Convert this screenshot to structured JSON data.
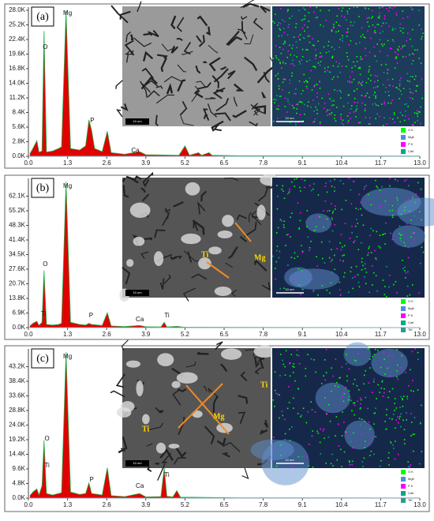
{
  "chart_data": [
    {
      "type": "area",
      "panel_label": "(a)",
      "color": "#e00000",
      "line_color": "#22b14c",
      "x": [
        0.05,
        0.15,
        0.28,
        0.35,
        0.45,
        0.52,
        0.6,
        0.8,
        1.0,
        1.1,
        1.25,
        1.4,
        1.7,
        1.9,
        2.01,
        2.1,
        2.2,
        2.45,
        2.62,
        2.75,
        3.2,
        3.69,
        3.9,
        5.0,
        5.2,
        5.35,
        5.65,
        5.75,
        6.0,
        6.1,
        7.0,
        13.0
      ],
      "values": [
        500,
        1500,
        3000,
        800,
        1000,
        24000,
        800,
        1000,
        1500,
        1800,
        28000,
        1500,
        1200,
        2000,
        7000,
        5000,
        1500,
        900,
        4800,
        700,
        400,
        900,
        300,
        200,
        2000,
        200,
        700,
        200,
        700,
        200,
        100,
        50
      ],
      "xlim": [
        0,
        13
      ],
      "ylim": [
        0,
        28000
      ],
      "xticks": [
        {
          "value": 0,
          "label": "0.0"
        },
        1.3,
        2.6,
        3.9,
        5.2,
        6.5,
        7.8,
        9.1,
        10.4,
        11.7,
        {
          "value": 13,
          "label": "13.0"
        }
      ],
      "yticks": [
        {
          "value": 0,
          "label": "0.0K"
        },
        {
          "value": 2800,
          "label": "2.8K"
        },
        {
          "value": 5600,
          "label": "5.6K"
        },
        {
          "value": 8400,
          "label": "8.4K"
        },
        {
          "value": 11200,
          "label": "11.2K"
        },
        {
          "value": 14000,
          "label": "14.0K"
        },
        {
          "value": 16800,
          "label": "16.8K"
        },
        {
          "value": 19600,
          "label": "19.6K"
        },
        {
          "value": 22400,
          "label": "22.4K"
        },
        {
          "value": 25200,
          "label": "25.2K"
        },
        {
          "value": 28000,
          "label": "28.0K"
        }
      ],
      "peak_labels": [
        "O",
        "Mg",
        "P",
        "Ca"
      ],
      "image_labels": [],
      "scale_bar_labels": [
        "10 um",
        "10 um"
      ],
      "map_legend": [
        {
          "label": "O K",
          "color": "#00ff00"
        },
        {
          "label": "MgK",
          "color": "#4a90d9"
        },
        {
          "label": "P K",
          "color": "#ff00ff"
        },
        {
          "label": "CaK",
          "color": "#00a88a"
        }
      ]
    },
    {
      "type": "area",
      "panel_label": "(b)",
      "color": "#e00000",
      "line_color": "#22b14c",
      "x": [
        0.05,
        0.15,
        0.28,
        0.35,
        0.45,
        0.52,
        0.6,
        0.8,
        1.0,
        1.1,
        1.25,
        1.4,
        1.7,
        1.9,
        2.01,
        2.1,
        2.45,
        2.62,
        2.75,
        3.2,
        3.69,
        3.9,
        4.4,
        4.51,
        4.6,
        4.93,
        5.2,
        7.0,
        13.0
      ],
      "values": [
        800,
        2000,
        3000,
        1000,
        2500,
        27000,
        1500,
        1200,
        1500,
        2000,
        69000,
        2500,
        1500,
        1200,
        2000,
        1500,
        1000,
        7000,
        800,
        500,
        1000,
        400,
        300,
        2500,
        300,
        600,
        200,
        100,
        50
      ],
      "xlim": [
        0,
        13
      ],
      "ylim": [
        0,
        69000
      ],
      "xticks": [
        {
          "value": 0,
          "label": "0.0"
        },
        1.3,
        2.6,
        3.9,
        5.2,
        6.5,
        7.8,
        9.1,
        10.4,
        11.7,
        {
          "value": 13,
          "label": "13.0"
        }
      ],
      "yticks": [
        {
          "value": 0,
          "label": "0.0K"
        },
        {
          "value": 6900,
          "label": "6.9K"
        },
        {
          "value": 13800,
          "label": "13.8K"
        },
        {
          "value": 20700,
          "label": "20.7K"
        },
        {
          "value": 27600,
          "label": "27.6K"
        },
        {
          "value": 34500,
          "label": "34.5K"
        },
        {
          "value": 41400,
          "label": "41.4K"
        },
        {
          "value": 48300,
          "label": "48.3K"
        },
        {
          "value": 55200,
          "label": "55.2K"
        },
        {
          "value": 62100,
          "label": "62.1K"
        }
      ],
      "peak_labels": [
        "O",
        "Mg",
        "Ti",
        "P",
        "Ca",
        "Ti"
      ],
      "image_labels": [
        "Ti",
        "Mg"
      ],
      "scale_bar_labels": [
        "10 um",
        "10 um"
      ],
      "map_legend": [
        {
          "label": "O K",
          "color": "#00ff00"
        },
        {
          "label": "MgK",
          "color": "#4a90d9"
        },
        {
          "label": "P K",
          "color": "#ff00ff"
        },
        {
          "label": "CaK",
          "color": "#00a88a"
        },
        {
          "label": "TiK",
          "color": "#2a9d8f"
        }
      ]
    },
    {
      "type": "area",
      "panel_label": "(c)",
      "color": "#e00000",
      "line_color": "#22b14c",
      "x": [
        0.05,
        0.15,
        0.28,
        0.35,
        0.45,
        0.52,
        0.6,
        0.8,
        1.0,
        1.1,
        1.25,
        1.4,
        1.7,
        1.9,
        2.01,
        2.1,
        2.45,
        2.62,
        2.75,
        3.2,
        3.69,
        3.9,
        4.4,
        4.51,
        4.6,
        4.8,
        4.93,
        5.05,
        7.0,
        13.0
      ],
      "values": [
        800,
        2000,
        3000,
        1000,
        4000,
        19000,
        1500,
        1000,
        1500,
        1800,
        48000,
        2000,
        1200,
        1500,
        5000,
        1500,
        1000,
        10000,
        800,
        500,
        1500,
        400,
        500,
        10000,
        600,
        400,
        2500,
        300,
        100,
        50
      ],
      "xlim": [
        0,
        13
      ],
      "ylim": [
        0,
        48000
      ],
      "xticks": [
        {
          "value": 0,
          "label": "0.0"
        },
        1.3,
        2.6,
        3.9,
        5.2,
        6.5,
        7.8,
        9.1,
        10.4,
        11.7,
        {
          "value": 13,
          "label": "13.0"
        }
      ],
      "yticks": [
        {
          "value": 0,
          "label": "0.0K"
        },
        {
          "value": 4800,
          "label": "4.8K"
        },
        {
          "value": 9600,
          "label": "9.6K"
        },
        {
          "value": 14400,
          "label": "14.4K"
        },
        {
          "value": 19200,
          "label": "19.2K"
        },
        {
          "value": 24000,
          "label": "24.0K"
        },
        {
          "value": 28800,
          "label": "28.8K"
        },
        {
          "value": 33600,
          "label": "33.6K"
        },
        {
          "value": 38400,
          "label": "38.4K"
        },
        {
          "value": 43200,
          "label": "43.2K"
        }
      ],
      "peak_labels": [
        "Mg",
        "O",
        "Ti",
        "P",
        "Ca",
        "Ti"
      ],
      "image_labels": [
        "Mg",
        "Ti",
        "Ti"
      ],
      "scale_bar_labels": [
        "10 um",
        "10 um"
      ],
      "map_legend": [
        {
          "label": "O K",
          "color": "#00ff00"
        },
        {
          "label": "MgK",
          "color": "#4a90d9"
        },
        {
          "label": "P K",
          "color": "#ff00ff"
        },
        {
          "label": "CaK",
          "color": "#00a88a"
        },
        {
          "label": "TiK",
          "color": "#2a9d8f"
        }
      ]
    }
  ]
}
